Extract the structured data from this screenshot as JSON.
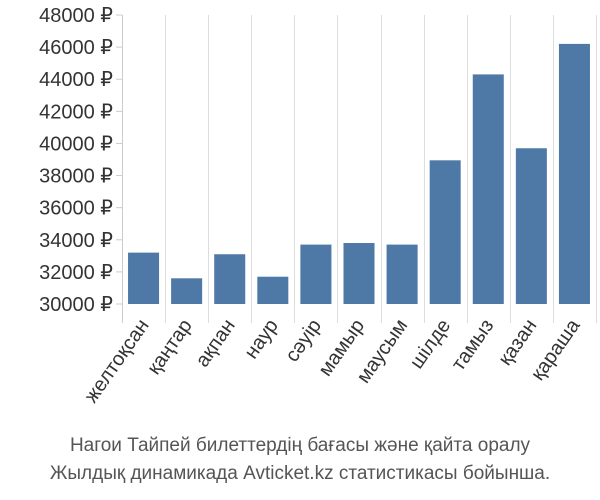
{
  "chart_data": {
    "type": "bar",
    "categories": [
      "желтоқсан",
      "қаңтар",
      "ақпан",
      "наур",
      "сәуір",
      "мамыр",
      "маусым",
      "шілде",
      "тамыз",
      "қазан",
      "қараша"
    ],
    "values": [
      33200,
      31600,
      33100,
      31700,
      33700,
      33800,
      33700,
      38950,
      44300,
      39700,
      46200
    ],
    "y_ticks": [
      "30000 ₽",
      "32000 ₽",
      "34000 ₽",
      "36000 ₽",
      "38000 ₽",
      "40000 ₽",
      "42000 ₽",
      "44000 ₽",
      "46000 ₽",
      "48000 ₽"
    ],
    "ylim": [
      30000,
      48000
    ],
    "grid": "vertical",
    "legend": "none",
    "bar_color": "#4e79a7",
    "caption_lines": [
      "Нагои Тайпей билеттердің бағасы және қайта оралу",
      "Жылдық динамикада Avticket.kz статистикасы бойынша."
    ]
  }
}
